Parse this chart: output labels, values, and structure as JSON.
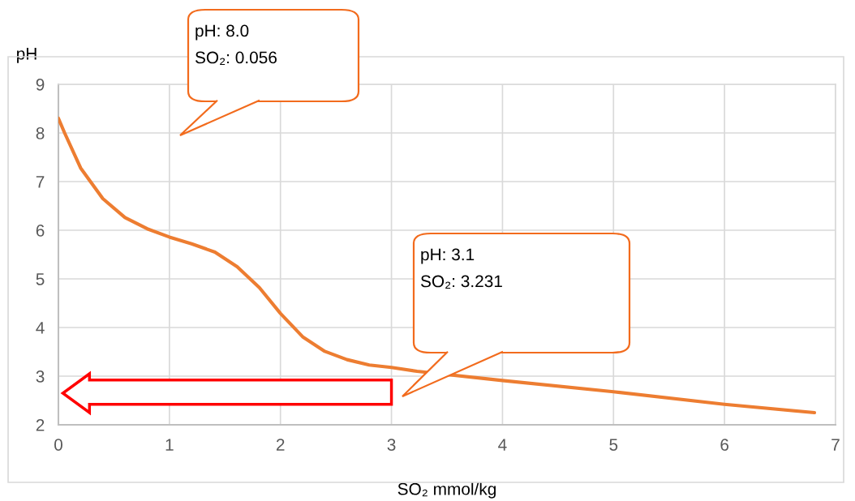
{
  "chart_data": {
    "type": "line",
    "xlabel": "SO₂ mmol/kg",
    "ylabel": "pH",
    "x": [
      0,
      0.056,
      0.2,
      0.4,
      0.6,
      0.8,
      1.0,
      1.2,
      1.41,
      1.61,
      1.81,
      2.0,
      2.2,
      2.4,
      2.6,
      2.8,
      3.0,
      3.231,
      4.0,
      5.0,
      6.0,
      6.81
    ],
    "series": [
      {
        "color": "#ed7d31",
        "values": [
          8.3,
          8.0,
          7.28,
          6.65,
          6.26,
          6.03,
          5.86,
          5.72,
          5.55,
          5.25,
          4.82,
          4.29,
          3.81,
          3.51,
          3.34,
          3.23,
          3.18,
          3.1,
          2.91,
          2.68,
          2.42,
          2.25
        ]
      }
    ],
    "xlim": [
      0,
      7
    ],
    "xticks": [
      0,
      1,
      2,
      3,
      4,
      5,
      6,
      7
    ],
    "ylim": [
      2,
      9
    ],
    "yticks": [
      2,
      3,
      4,
      5,
      6,
      7,
      8,
      9
    ],
    "grid": true,
    "legend": false,
    "marker": "none",
    "line_style": "solid",
    "annotations": [
      "pH: 8.0\nSO₂: 0.056",
      "pH: 3.1\nSO₂: 3.231"
    ]
  }
}
